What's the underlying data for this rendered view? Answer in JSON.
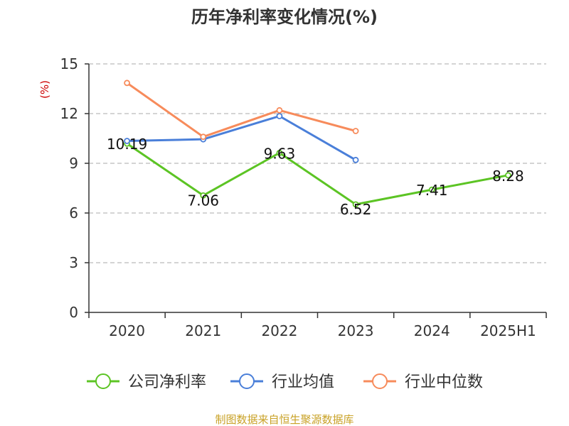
{
  "chart_data": {
    "type": "line",
    "title": "历年净利率变化情况(%)",
    "ylabel": "(%)",
    "categories": [
      "2020",
      "2021",
      "2022",
      "2023",
      "2024",
      "2025H1"
    ],
    "yticks": [
      "0",
      "3",
      "6",
      "9",
      "12",
      "15"
    ],
    "ylim": [
      0,
      15
    ],
    "grid": true,
    "legend": "bottom-center",
    "series": [
      {
        "name": "公司净利率",
        "color": "#5cc424",
        "values": [
          10.19,
          7.06,
          9.63,
          6.52,
          7.41,
          8.28
        ],
        "labels": [
          "10.19",
          "7.06",
          "9.63",
          "6.52",
          "7.41",
          "8.28"
        ]
      },
      {
        "name": "行业均值",
        "color": "#4a7fd9",
        "values": [
          10.35,
          10.45,
          11.85,
          9.2,
          null,
          null
        ]
      },
      {
        "name": "行业中位数",
        "color": "#f78b5b",
        "values": [
          13.85,
          10.6,
          12.2,
          10.95,
          null,
          null
        ]
      }
    ],
    "source": "制图数据来自恒生聚源数据库"
  }
}
